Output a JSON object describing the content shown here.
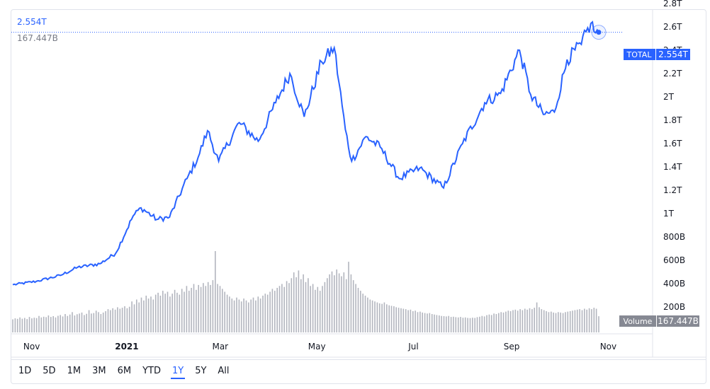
{
  "legend": {
    "price": "2.554T",
    "volume": "167.447B"
  },
  "price_tag": {
    "label": "TOTAL",
    "value": "2.554T",
    "color": "#2962ff"
  },
  "volume_tag": {
    "label": "Volume",
    "value": "167.447B"
  },
  "y_axis_ticks": [
    "2.8T",
    "2.6T",
    "2.4T",
    "2.2T",
    "2T",
    "1.8T",
    "1.6T",
    "1.4T",
    "1.2T",
    "1T",
    "800B",
    "600B",
    "400B",
    "200B"
  ],
  "x_axis_ticks": [
    "Nov",
    "2021",
    "Mar",
    "May",
    "Jul",
    "Sep",
    "Nov"
  ],
  "timeframes": [
    "1D",
    "5D",
    "1M",
    "3M",
    "6M",
    "YTD",
    "1Y",
    "5Y",
    "All"
  ],
  "active_timeframe": "1Y",
  "chart_data": {
    "type": "line",
    "title": "",
    "x_unit": "date",
    "y_unit": "USD",
    "ylim": [
      0,
      2900000000000.0
    ],
    "series": [
      {
        "name": "TOTAL",
        "color": "#2962ff",
        "points": [
          [
            "2020-10-21",
            390000000000.0
          ],
          [
            "2020-11-05",
            420000000000.0
          ],
          [
            "2020-11-20",
            470000000000.0
          ],
          [
            "2020-12-01",
            540000000000.0
          ],
          [
            "2020-12-15",
            570000000000.0
          ],
          [
            "2020-12-25",
            660000000000.0
          ],
          [
            "2021-01-05",
            980000000000.0
          ],
          [
            "2021-01-10",
            1050000000000.0
          ],
          [
            "2021-01-20",
            950000000000.0
          ],
          [
            "2021-01-28",
            970000000000.0
          ],
          [
            "2021-02-08",
            1300000000000.0
          ],
          [
            "2021-02-15",
            1480000000000.0
          ],
          [
            "2021-02-21",
            1710000000000.0
          ],
          [
            "2021-02-28",
            1450000000000.0
          ],
          [
            "2021-03-13",
            1780000000000.0
          ],
          [
            "2021-03-25",
            1620000000000.0
          ],
          [
            "2021-04-05",
            1950000000000.0
          ],
          [
            "2021-04-14",
            2200000000000.0
          ],
          [
            "2021-04-23",
            1830000000000.0
          ],
          [
            "2021-05-04",
            2300000000000.0
          ],
          [
            "2021-05-12",
            2420000000000.0
          ],
          [
            "2021-05-19",
            1720000000000.0
          ],
          [
            "2021-05-23",
            1450000000000.0
          ],
          [
            "2021-06-01",
            1660000000000.0
          ],
          [
            "2021-06-10",
            1570000000000.0
          ],
          [
            "2021-06-22",
            1300000000000.0
          ],
          [
            "2021-07-05",
            1390000000000.0
          ],
          [
            "2021-07-20",
            1220000000000.0
          ],
          [
            "2021-08-01",
            1600000000000.0
          ],
          [
            "2021-08-15",
            1950000000000.0
          ],
          [
            "2021-08-25",
            2030000000000.0
          ],
          [
            "2021-09-06",
            2400000000000.0
          ],
          [
            "2021-09-13",
            2020000000000.0
          ],
          [
            "2021-09-21",
            1850000000000.0
          ],
          [
            "2021-09-28",
            1870000000000.0
          ],
          [
            "2021-10-06",
            2320000000000.0
          ],
          [
            "2021-10-15",
            2450000000000.0
          ],
          [
            "2021-10-21",
            2630000000000.0
          ],
          [
            "2021-10-24",
            2550000000000.0
          ],
          [
            "2021-10-26",
            2554000000000.0
          ]
        ]
      }
    ],
    "volume": {
      "name": "Volume",
      "color": "#b2b5be",
      "x_start": "2020-10-21",
      "x_end": "2021-10-26",
      "values": [
        135000000000.0,
        145000000000.0,
        140000000000.0,
        155000000000.0,
        142000000000.0,
        150000000000.0,
        138000000000.0,
        160000000000.0,
        145000000000.0,
        152000000000.0,
        148000000000.0,
        170000000000.0,
        155000000000.0,
        162000000000.0,
        158000000000.0,
        175000000000.0,
        160000000000.0,
        168000000000.0,
        155000000000.0,
        172000000000.0,
        180000000000.0,
        165000000000.0,
        190000000000.0,
        170000000000.0,
        185000000000.0,
        210000000000.0,
        175000000000.0,
        188000000000.0,
        195000000000.0,
        205000000000.0,
        180000000000.0,
        192000000000.0,
        230000000000.0,
        195000000000.0,
        200000000000.0,
        225000000000.0,
        210000000000.0,
        190000000000.0,
        205000000000.0,
        220000000000.0,
        240000000000.0,
        230000000000.0,
        250000000000.0,
        235000000000.0,
        260000000000.0,
        245000000000.0,
        255000000000.0,
        270000000000.0,
        250000000000.0,
        265000000000.0,
        320000000000.0,
        290000000000.0,
        340000000000.0,
        310000000000.0,
        360000000000.0,
        330000000000.0,
        380000000000.0,
        350000000000.0,
        370000000000.0,
        340000000000.0,
        390000000000.0,
        410000000000.0,
        380000000000.0,
        430000000000.0,
        400000000000.0,
        420000000000.0,
        370000000000.0,
        400000000000.0,
        440000000000.0,
        410000000000.0,
        390000000000.0,
        450000000000.0,
        420000000000.0,
        480000000000.0,
        430000000000.0,
        460000000000.0,
        500000000000.0,
        440000000000.0,
        490000000000.0,
        470000000000.0,
        510000000000.0,
        480000000000.0,
        520000000000.0,
        490000000000.0,
        540000000000.0,
        840000000000.0,
        500000000000.0,
        480000000000.0,
        450000000000.0,
        420000000000.0,
        390000000000.0,
        370000000000.0,
        350000000000.0,
        330000000000.0,
        360000000000.0,
        340000000000.0,
        320000000000.0,
        350000000000.0,
        330000000000.0,
        310000000000.0,
        340000000000.0,
        360000000000.0,
        330000000000.0,
        370000000000.0,
        350000000000.0,
        380000000000.0,
        400000000000.0,
        390000000000.0,
        420000000000.0,
        450000000000.0,
        430000000000.0,
        460000000000.0,
        480000000000.0,
        500000000000.0,
        470000000000.0,
        530000000000.0,
        510000000000.0,
        560000000000.0,
        620000000000.0,
        570000000000.0,
        640000000000.0,
        550000000000.0,
        600000000000.0,
        520000000000.0,
        560000000000.0,
        480000000000.0,
        500000000000.0,
        440000000000.0,
        470000000000.0,
        430000000000.0,
        480000000000.0,
        520000000000.0,
        560000000000.0,
        600000000000.0,
        630000000000.0,
        590000000000.0,
        650000000000.0,
        610000000000.0,
        580000000000.0,
        620000000000.0,
        550000000000.0,
        730000000000.0,
        600000000000.0,
        540000000000.0,
        500000000000.0,
        460000000000.0,
        430000000000.0,
        400000000000.0,
        380000000000.0,
        360000000000.0,
        340000000000.0,
        330000000000.0,
        320000000000.0,
        310000000000.0,
        300000000000.0,
        295000000000.0,
        310000000000.0,
        290000000000.0,
        280000000000.0,
        275000000000.0,
        270000000000.0,
        260000000000.0,
        255000000000.0,
        250000000000.0,
        245000000000.0,
        240000000000.0,
        230000000000.0,
        235000000000.0,
        220000000000.0,
        225000000000.0,
        210000000000.0,
        215000000000.0,
        205000000000.0,
        200000000000.0,
        195000000000.0,
        200000000000.0,
        190000000000.0,
        185000000000.0,
        180000000000.0,
        175000000000.0,
        170000000000.0,
        168000000000.0,
        165000000000.0,
        170000000000.0,
        160000000000.0,
        162000000000.0,
        158000000000.0,
        155000000000.0,
        160000000000.0,
        152000000000.0,
        155000000000.0,
        150000000000.0,
        148000000000.0,
        152000000000.0,
        150000000000.0,
        158000000000.0,
        162000000000.0,
        170000000000.0,
        165000000000.0,
        178000000000.0,
        185000000000.0,
        180000000000.0,
        195000000000.0,
        190000000000.0,
        200000000000.0,
        210000000000.0,
        205000000000.0,
        215000000000.0,
        225000000000.0,
        220000000000.0,
        230000000000.0,
        235000000000.0,
        225000000000.0,
        240000000000.0,
        230000000000.0,
        245000000000.0,
        235000000000.0,
        250000000000.0,
        240000000000.0,
        255000000000.0,
        310000000000.0,
        260000000000.0,
        240000000000.0,
        230000000000.0,
        220000000000.0,
        210000000000.0,
        215000000000.0,
        205000000000.0,
        200000000000.0,
        210000000000.0,
        205000000000.0,
        200000000000.0,
        210000000000.0,
        215000000000.0,
        220000000000.0,
        225000000000.0,
        230000000000.0,
        235000000000.0,
        240000000000.0,
        230000000000.0,
        245000000000.0,
        235000000000.0,
        250000000000.0,
        240000000000.0,
        255000000000.0,
        245000000000.0,
        167447000000.0
      ]
    }
  }
}
